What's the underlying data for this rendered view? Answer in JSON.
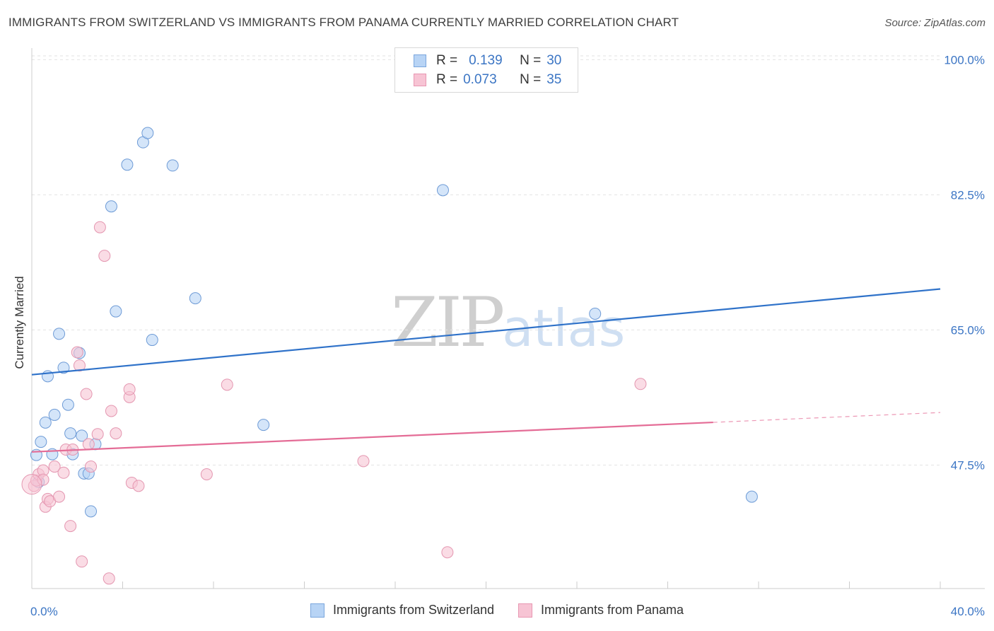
{
  "header": {
    "title": "IMMIGRANTS FROM SWITZERLAND VS IMMIGRANTS FROM PANAMA CURRENTLY MARRIED CORRELATION CHART",
    "source": "Source: ZipAtlas.com"
  },
  "watermark": {
    "zip": "ZIP",
    "atlas": "atlas"
  },
  "legend": {
    "r_label": "R =",
    "n_label": "N =",
    "rows": [
      {
        "r": "0.139",
        "n": "30"
      },
      {
        "r": "0.073",
        "n": "35"
      }
    ]
  },
  "colors": {
    "switzerland_fill": "#b8d4f5",
    "switzerland_line": "#2f72c9",
    "panama_fill": "#f7c4d4",
    "panama_line": "#e46c96",
    "tick_label": "#3b75c4"
  },
  "chart_data": {
    "type": "scatter",
    "title": "IMMIGRANTS FROM SWITZERLAND VS IMMIGRANTS FROM PANAMA CURRENTLY MARRIED CORRELATION CHART",
    "xlabel": "",
    "ylabel": "Currently Married",
    "xlim": [
      0,
      40
    ],
    "ylim": [
      31.5,
      101.5
    ],
    "x_tick_labels": [
      {
        "value": 0,
        "label": "0.0%"
      },
      {
        "value": 40,
        "label": "40.0%"
      }
    ],
    "y_tick_labels": [
      {
        "value": 100,
        "label": "100.0%"
      },
      {
        "value": 82.5,
        "label": "82.5%"
      },
      {
        "value": 65,
        "label": "65.0%"
      },
      {
        "value": 47.5,
        "label": "47.5%"
      }
    ],
    "series": [
      {
        "name": "Immigrants from Switzerland",
        "r": 0.139,
        "n": 30,
        "trend": {
          "x": [
            0,
            40
          ],
          "y": [
            59.2,
            70.3
          ],
          "solid_until": 40
        },
        "points": [
          [
            0.3,
            45.3
          ],
          [
            0.2,
            48.8
          ],
          [
            0.4,
            50.5
          ],
          [
            0.6,
            53.0
          ],
          [
            0.7,
            59.0
          ],
          [
            0.9,
            48.9
          ],
          [
            1.0,
            54.0
          ],
          [
            1.2,
            64.5
          ],
          [
            1.4,
            60.1
          ],
          [
            1.6,
            55.3
          ],
          [
            1.7,
            51.6
          ],
          [
            1.8,
            48.9
          ],
          [
            2.1,
            62.0
          ],
          [
            2.2,
            51.3
          ],
          [
            2.3,
            46.4
          ],
          [
            2.5,
            46.4
          ],
          [
            2.6,
            41.5
          ],
          [
            2.8,
            50.2
          ],
          [
            3.5,
            81.0
          ],
          [
            3.7,
            67.4
          ],
          [
            4.2,
            86.4
          ],
          [
            4.9,
            89.3
          ],
          [
            5.1,
            90.5
          ],
          [
            5.3,
            63.7
          ],
          [
            6.2,
            86.3
          ],
          [
            7.2,
            69.1
          ],
          [
            10.2,
            52.7
          ],
          [
            18.1,
            83.1
          ],
          [
            24.8,
            67.1
          ],
          [
            31.7,
            43.4
          ]
        ]
      },
      {
        "name": "Immigrants from Panama",
        "r": 0.073,
        "n": 35,
        "trend": {
          "x": [
            0,
            40
          ],
          "y": [
            49.2,
            54.3
          ],
          "solid_until": 30
        },
        "points": [
          [
            0.1,
            44.8
          ],
          [
            0.2,
            45.5
          ],
          [
            0.3,
            46.3
          ],
          [
            0.5,
            46.8
          ],
          [
            0.5,
            45.6
          ],
          [
            0.6,
            42.1
          ],
          [
            0.7,
            43.1
          ],
          [
            0.8,
            42.8
          ],
          [
            1.0,
            47.3
          ],
          [
            1.2,
            43.4
          ],
          [
            1.4,
            46.5
          ],
          [
            1.5,
            49.5
          ],
          [
            1.7,
            39.6
          ],
          [
            1.8,
            49.5
          ],
          [
            2.0,
            62.1
          ],
          [
            2.1,
            60.4
          ],
          [
            2.2,
            35.0
          ],
          [
            2.4,
            56.7
          ],
          [
            2.5,
            50.2
          ],
          [
            2.6,
            47.3
          ],
          [
            2.9,
            51.5
          ],
          [
            3.0,
            78.3
          ],
          [
            3.2,
            74.6
          ],
          [
            3.4,
            32.8
          ],
          [
            3.5,
            54.5
          ],
          [
            3.7,
            51.6
          ],
          [
            4.3,
            56.3
          ],
          [
            4.3,
            57.3
          ],
          [
            4.4,
            45.2
          ],
          [
            4.7,
            44.8
          ],
          [
            7.7,
            46.3
          ],
          [
            8.6,
            57.9
          ],
          [
            14.6,
            48.0
          ],
          [
            18.3,
            36.2
          ],
          [
            26.8,
            58.0
          ]
        ]
      }
    ]
  },
  "bottom_legend": [
    {
      "label": "Immigrants from Switzerland"
    },
    {
      "label": "Immigrants from Panama"
    }
  ]
}
